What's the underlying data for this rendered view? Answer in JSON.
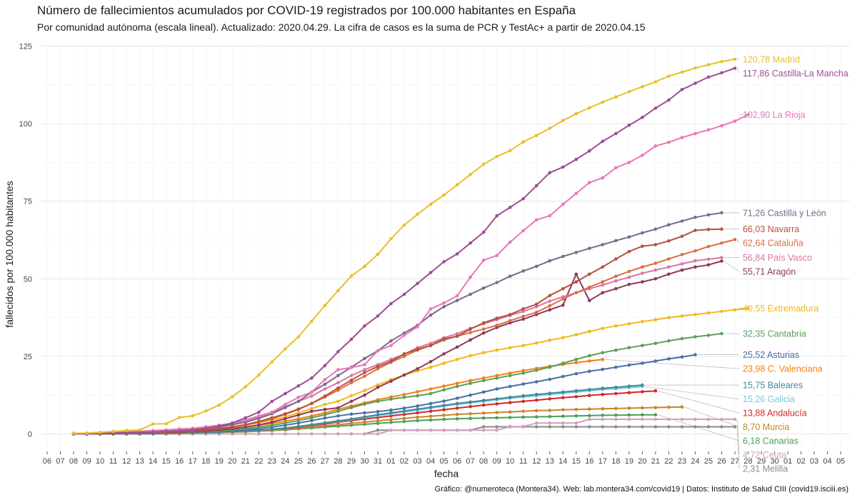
{
  "chart_data": {
    "type": "line",
    "title": "Número de fallecimientos acumulados por COVID-19 registrados por 100.000 habitantes en España",
    "subtitle": "Por comunidad autónoma (escala lineal). Actualizado: 2020.04.29. La cifra de casos es la suma de PCR y TestAc+ a partir de 2020.04.15",
    "xlabel": "fecha",
    "ylabel": "fallecidos por 100.000 habitantes",
    "caption": "Gráfico: @numeroteca (Montera34). Web: lab.montera34.com/covid19 | Datos: Instituto de Salud CIII (covid19.isciii.es)",
    "x_tick_labels": [
      "06",
      "07",
      "08",
      "09",
      "10",
      "11",
      "12",
      "13",
      "14",
      "15",
      "16",
      "17",
      "18",
      "19",
      "20",
      "21",
      "22",
      "23",
      "24",
      "25",
      "26",
      "27",
      "28",
      "29",
      "30",
      "31",
      "01",
      "02",
      "03",
      "04",
      "05",
      "06",
      "07",
      "08",
      "09",
      "10",
      "11",
      "12",
      "13",
      "14",
      "15",
      "16",
      "17",
      "18",
      "19",
      "20",
      "21",
      "22",
      "23",
      "24",
      "25",
      "26",
      "27",
      "28",
      "29",
      "30",
      "01",
      "02",
      "03",
      "04",
      "05"
    ],
    "x_start_date": "2020-03-06",
    "data_start_index": 2,
    "y_ticks": [
      0,
      25,
      50,
      75,
      100,
      125
    ],
    "ylim": [
      -5,
      127
    ],
    "grid": true,
    "legend": "labels at line ends (right)",
    "series": [
      {
        "name": "Madrid",
        "label": "120,78 Madrid",
        "color": "#e6c229",
        "start": 2,
        "values": [
          0.2,
          0.3,
          0.5,
          0.8,
          1.1,
          1.3,
          3.2,
          3.3,
          5.3,
          5.8,
          7.4,
          9.3,
          12,
          15.2,
          19,
          23.2,
          27.4,
          31.3,
          36.3,
          41.4,
          46.2,
          50.9,
          54,
          57.9,
          62.9,
          67.3,
          70.8,
          74,
          77,
          80.3,
          83.6,
          86.9,
          89.4,
          91.3,
          94.1,
          96.2,
          98.5,
          101,
          103.2,
          105.1,
          106.9,
          108.6,
          110.3,
          111.9,
          113.5,
          115.3,
          116.6,
          117.9,
          119,
          120,
          120.78
        ]
      },
      {
        "name": "Castilla-La Mancha",
        "label": "117,86 Castilla-La Mancha",
        "color": "#9b4f96",
        "start": 2,
        "values": [
          0,
          0,
          0.2,
          0.3,
          0.4,
          0.5,
          0.6,
          0.8,
          1,
          1.3,
          1.8,
          2.5,
          3.5,
          5.2,
          7,
          10.5,
          13,
          15.5,
          18,
          22,
          26.5,
          30.5,
          34.8,
          38,
          42,
          45,
          48.5,
          52,
          55.5,
          58,
          61.5,
          65,
          70.3,
          73,
          75.8,
          80,
          84.2,
          86,
          88.5,
          91.2,
          94.3,
          96.8,
          99.5,
          102,
          105,
          107.6,
          111,
          113,
          115,
          116.4,
          117.86
        ]
      },
      {
        "name": "La Rioja",
        "label": "102,90 La Rioja",
        "color": "#e878b8",
        "start": 2,
        "values": [
          0.2,
          0.2,
          0.3,
          0.5,
          0.7,
          0.9,
          1.1,
          1.3,
          1.6,
          1.8,
          2.3,
          2.8,
          3.5,
          4.5,
          5.8,
          7,
          9.5,
          11.8,
          13.5,
          17.5,
          20.7,
          21.4,
          22.3,
          26.8,
          28.5,
          31.8,
          34.5,
          40.3,
          42.2,
          44.5,
          50.5,
          56,
          57.5,
          61.8,
          65.5,
          69,
          70.3,
          74,
          77.5,
          81,
          82.5,
          85.8,
          87.5,
          89.8,
          92.8,
          94,
          95.5,
          96.8,
          98,
          99.3,
          100.8,
          102.9
        ]
      },
      {
        "name": "Castilla y León",
        "label": "71,26 Castilla y León",
        "color": "#7b6a8f",
        "start": 2,
        "values": [
          0,
          0,
          0.1,
          0.2,
          0.3,
          0.5,
          0.7,
          0.9,
          1.1,
          1.4,
          1.8,
          2.4,
          3,
          3.8,
          5,
          6.5,
          8.5,
          10.5,
          13.5,
          16,
          18.8,
          21.5,
          24.3,
          26.8,
          30,
          32.5,
          35,
          38.3,
          41,
          43,
          45,
          47,
          48.8,
          50.8,
          52.5,
          54,
          55.8,
          57.2,
          58.5,
          59.8,
          61,
          62.3,
          63.5,
          64.8,
          66,
          67.4,
          68.6,
          69.8,
          70.6,
          71.26
        ]
      },
      {
        "name": "Navarra",
        "label": "66,03 Navarra",
        "color": "#b5533c",
        "start": 2,
        "values": [
          0,
          0,
          0,
          0.1,
          0.2,
          0.3,
          0.4,
          0.5,
          0.7,
          1,
          1.3,
          1.8,
          2.3,
          3,
          4,
          5.2,
          6.5,
          8,
          9.8,
          12.2,
          14.8,
          17.3,
          19.8,
          21.7,
          23.4,
          25.8,
          27.3,
          28.5,
          30.6,
          31.5,
          33.8,
          35.8,
          37.3,
          38.5,
          40.3,
          41.8,
          44.6,
          46.8,
          49,
          51.5,
          53.8,
          56.4,
          58.8,
          60.5,
          61,
          62.2,
          63.7,
          65.6,
          65.9,
          66.03
        ]
      },
      {
        "name": "Cataluña",
        "label": "62,64 Cataluña",
        "color": "#d96f47",
        "start": 2,
        "values": [
          0,
          0,
          0.1,
          0.2,
          0.3,
          0.4,
          0.5,
          0.6,
          0.8,
          1,
          1.3,
          1.7,
          2.2,
          2.9,
          3.8,
          4.9,
          6.3,
          7.9,
          9.8,
          11.9,
          14.1,
          16.5,
          18.6,
          21,
          23.1,
          25,
          27,
          28.5,
          30.3,
          31.5,
          32.7,
          33.8,
          35,
          36.5,
          37.9,
          39.2,
          41.3,
          43.5,
          45.5,
          47.3,
          49,
          50.8,
          52.4,
          53.8,
          55,
          56.4,
          57.8,
          59,
          60.4,
          61.5,
          62.64
        ]
      },
      {
        "name": "País Vasco",
        "label": "56,84 País Vasco",
        "color": "#d975a4",
        "start": 2,
        "values": [
          0,
          0,
          0.1,
          0.2,
          0.3,
          0.4,
          0.5,
          0.7,
          0.9,
          1.2,
          1.6,
          2.2,
          3,
          4,
          5.4,
          7,
          8.8,
          10.5,
          12.2,
          14.5,
          16.5,
          18.8,
          20.7,
          22.3,
          24,
          25.7,
          27.8,
          29.2,
          31,
          32.3,
          34,
          35.5,
          36.8,
          38.2,
          39.5,
          41,
          42.8,
          44.2,
          45.5,
          46.8,
          48,
          49.3,
          50.5,
          51.8,
          52.8,
          53.8,
          54.8,
          55.8,
          56.3,
          56.84
        ]
      },
      {
        "name": "Aragón",
        "label": "55,71 Aragón",
        "color": "#8c3a5a",
        "start": 2,
        "values": [
          0,
          0,
          0,
          0.1,
          0.2,
          0.3,
          0.4,
          0.5,
          0.6,
          0.8,
          1,
          1.3,
          1.7,
          2.2,
          2.9,
          3.8,
          4.9,
          6.1,
          7.3,
          7.9,
          8.4,
          10.5,
          12.5,
          15,
          17,
          19,
          21,
          23.3,
          25.8,
          28,
          30.3,
          32.5,
          34.3,
          35.8,
          37,
          38.5,
          40,
          41.5,
          51.5,
          43,
          45.5,
          46.8,
          48.2,
          49,
          50,
          51.5,
          52.8,
          53.8,
          54.5,
          55.71
        ]
      },
      {
        "name": "Extremadura",
        "label": "40,55 Extremadura",
        "color": "#f2b81c",
        "start": 2,
        "values": [
          0,
          0,
          0,
          0.1,
          0.2,
          0.3,
          0.4,
          0.5,
          0.7,
          0.9,
          1.2,
          1.6,
          2.1,
          2.8,
          3.6,
          4.5,
          5.5,
          6.8,
          8.2,
          9.5,
          10.5,
          12.3,
          14,
          15.8,
          17.5,
          19,
          20.3,
          21.5,
          22.8,
          24,
          25.2,
          26.2,
          27,
          27.8,
          28.5,
          29.3,
          30.2,
          31,
          32,
          33,
          34,
          34.8,
          35.5,
          36.2,
          36.8,
          37.5,
          38,
          38.5,
          39,
          39.5,
          40,
          40.55
        ]
      },
      {
        "name": "Cantabria",
        "label": "32,35 Cantabria",
        "color": "#5b9e5b",
        "start": 2,
        "values": [
          0,
          0,
          0,
          0,
          0.1,
          0.2,
          0.3,
          0.4,
          0.5,
          0.6,
          0.8,
          1,
          1.3,
          1.7,
          2.2,
          2.8,
          3.5,
          4.3,
          5.2,
          6.2,
          7.3,
          8.5,
          9.6,
          10.5,
          11.2,
          11.8,
          12.3,
          13,
          14.2,
          15.3,
          16.3,
          17.2,
          18,
          18.8,
          19.6,
          20.5,
          21.5,
          22.8,
          24,
          25.2,
          26.2,
          27,
          27.8,
          28.5,
          29.2,
          30,
          30.7,
          31.3,
          31.8,
          32.35
        ]
      },
      {
        "name": "Asturias",
        "label": "25,52 Asturias",
        "color": "#4a6fa5",
        "start": 2,
        "values": [
          0,
          0,
          0,
          0,
          0.1,
          0.1,
          0.2,
          0.3,
          0.4,
          0.5,
          0.6,
          0.8,
          1,
          1.3,
          1.7,
          2.2,
          2.8,
          3.5,
          4.3,
          5.1,
          5.8,
          6.4,
          6.8,
          7.2,
          7.7,
          8.3,
          9,
          9.8,
          10.6,
          11.5,
          12.5,
          13.5,
          14.5,
          15.3,
          16.1,
          16.8,
          17.6,
          18.5,
          19.4,
          20.2,
          20.8,
          21.5,
          22.2,
          22.8,
          23.5,
          24.2,
          24.8,
          25.52
        ]
      },
      {
        "name": "C. Valenciana",
        "label": "23,98 C. Valenciana",
        "color": "#f77f0e",
        "start": 2,
        "values": [
          0,
          0,
          0,
          0.1,
          0.2,
          0.3,
          0.4,
          0.5,
          0.6,
          0.8,
          1,
          1.3,
          1.7,
          2.2,
          2.8,
          3.4,
          4.1,
          4.9,
          5.8,
          6.8,
          7.9,
          9,
          10,
          11,
          11.9,
          12.7,
          13.6,
          14.5,
          15.4,
          16.3,
          17.2,
          18,
          18.8,
          19.6,
          20.4,
          21.1,
          21.8,
          22.4,
          23,
          23.5,
          23.98
        ]
      },
      {
        "name": "Baleares",
        "label": "15,75 Baleares",
        "color": "#3b8c9c",
        "start": 2,
        "values": [
          0,
          0,
          0,
          0,
          0,
          0.1,
          0.1,
          0.2,
          0.3,
          0.4,
          0.5,
          0.6,
          0.8,
          1,
          1.2,
          1.5,
          1.9,
          2.4,
          3,
          3.6,
          4.2,
          4.8,
          5.5,
          6.2,
          6.8,
          7.4,
          8,
          8.6,
          9.2,
          9.8,
          10.3,
          10.8,
          11.3,
          11.8,
          12.3,
          12.7,
          13.1,
          13.5,
          13.9,
          14.3,
          14.7,
          15,
          15.4,
          15.75
        ]
      },
      {
        "name": "Galicia",
        "label": "15,26 Galicia",
        "color": "#7ac8e0",
        "start": 2,
        "values": [
          0,
          0,
          0,
          0,
          0,
          0.1,
          0.1,
          0.2,
          0.3,
          0.4,
          0.5,
          0.6,
          0.8,
          1,
          1.2,
          1.5,
          1.9,
          2.4,
          2.9,
          3.5,
          4.1,
          4.7,
          5.3,
          5.9,
          6.5,
          7.1,
          7.7,
          8.3,
          8.9,
          9.5,
          10,
          10.5,
          11,
          11.5,
          11.9,
          12.3,
          12.7,
          13.1,
          13.5,
          13.9,
          14.3,
          14.6,
          14.9,
          15.26
        ]
      },
      {
        "name": "Andalucía",
        "label": "13,88 Andalucía",
        "color": "#d62728",
        "start": 2,
        "values": [
          0,
          0,
          0,
          0,
          0,
          0.1,
          0.1,
          0.2,
          0.3,
          0.4,
          0.5,
          0.6,
          0.8,
          1,
          1.2,
          1.5,
          1.8,
          2.2,
          2.7,
          3.2,
          3.8,
          4.3,
          4.8,
          5.3,
          5.8,
          6.3,
          6.8,
          7.3,
          7.8,
          8.3,
          8.8,
          9.3,
          9.7,
          10.1,
          10.5,
          10.9,
          11.3,
          11.7,
          12,
          12.4,
          12.7,
          13,
          13.3,
          13.6,
          13.88
        ]
      },
      {
        "name": "Murcia",
        "label": "8,70 Murcia",
        "color": "#c8862a",
        "start": 2,
        "values": [
          0,
          0,
          0,
          0,
          0,
          0,
          0.1,
          0.1,
          0.2,
          0.3,
          0.4,
          0.5,
          0.6,
          0.8,
          1,
          1.2,
          1.5,
          1.8,
          2.2,
          2.6,
          3,
          3.4,
          3.8,
          4.2,
          4.6,
          5,
          5.4,
          5.7,
          6,
          6.3,
          6.5,
          6.7,
          6.9,
          7.1,
          7.3,
          7.5,
          7.6,
          7.8,
          7.9,
          8,
          8.1,
          8.2,
          8.3,
          8.4,
          8.5,
          8.6,
          8.7
        ]
      },
      {
        "name": "Canarias",
        "label": "6,18 Canarias",
        "color": "#4ca05a",
        "start": 2,
        "values": [
          0,
          0,
          0,
          0,
          0,
          0,
          0.1,
          0.1,
          0.2,
          0.3,
          0.4,
          0.5,
          0.6,
          0.7,
          0.9,
          1.1,
          1.3,
          1.6,
          1.9,
          2.2,
          2.5,
          2.8,
          3.1,
          3.4,
          3.7,
          4,
          4.3,
          4.5,
          4.7,
          4.9,
          5,
          5.1,
          5.2,
          5.3,
          5.4,
          5.5,
          5.6,
          5.7,
          5.8,
          5.9,
          6,
          6.05,
          6.1,
          6.15,
          6.18
        ]
      },
      {
        "name": "Ceuta",
        "label": "4,72 Ceuta",
        "color": "#d4a0c0",
        "start": 2,
        "values": [
          0,
          0,
          0,
          0,
          0,
          0,
          0,
          0,
          0,
          0,
          0,
          0,
          0,
          0,
          0,
          0,
          0,
          0,
          0,
          0,
          0,
          0,
          0,
          0,
          1.2,
          1.2,
          1.2,
          1.2,
          1.2,
          1.2,
          1.2,
          1.2,
          1.2,
          2.4,
          2.4,
          3.5,
          3.5,
          3.5,
          3.5,
          4.7,
          4.72,
          4.72,
          4.72,
          4.72,
          4.72,
          4.72,
          4.72,
          4.72,
          4.72,
          4.72,
          4.72
        ]
      },
      {
        "name": "Melilla",
        "label": "2,31 Melilla",
        "color": "#8c8c8c",
        "start": 2,
        "values": [
          0,
          0,
          0,
          0,
          0,
          0,
          0,
          0,
          0,
          0,
          0,
          0,
          0,
          0,
          0,
          0,
          0,
          0,
          0,
          0,
          0,
          0,
          0,
          1.2,
          1.2,
          1.2,
          1.2,
          1.2,
          1.2,
          1.2,
          1.2,
          2.31,
          2.31,
          2.31,
          2.31,
          2.31,
          2.31,
          2.31,
          2.31,
          2.31,
          2.31,
          2.31,
          2.31,
          2.31,
          2.31,
          2.31,
          2.31,
          2.31,
          2.31,
          2.31,
          2.31
        ]
      }
    ]
  }
}
